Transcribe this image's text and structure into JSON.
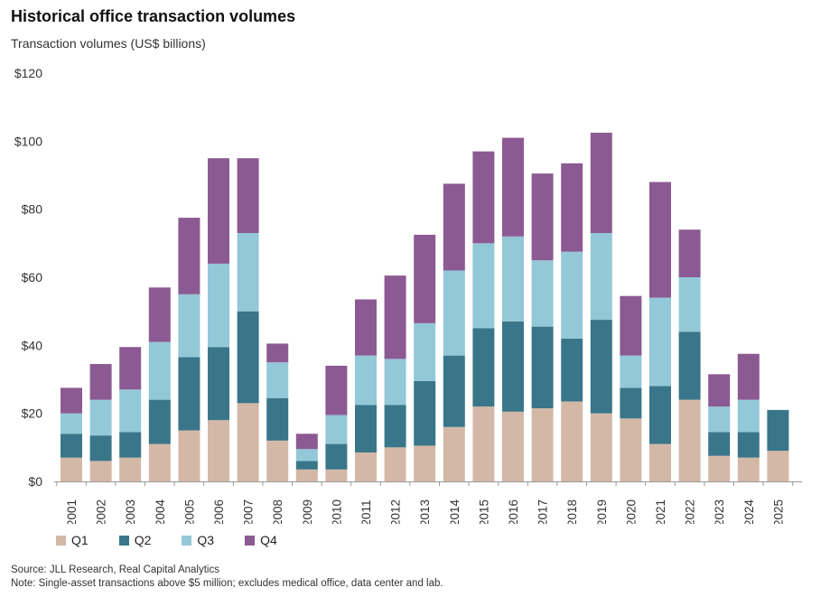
{
  "title": "Historical office transaction volumes",
  "chart_data": {
    "type": "bar",
    "stacked": true,
    "title": "Historical office transaction volumes",
    "ylabel": "Transaction volumes (US$ billions)",
    "xlabel": "",
    "ylim": [
      0,
      120
    ],
    "yticks": [
      0,
      20,
      40,
      60,
      80,
      100,
      120
    ],
    "ytick_labels": [
      "$0",
      "$20",
      "$40",
      "$60",
      "$80",
      "$100",
      "$120"
    ],
    "grid": false,
    "legend_position": "bottom-left",
    "categories": [
      "2001",
      "2002",
      "2003",
      "2004",
      "2005",
      "2006",
      "2007",
      "2008",
      "2009",
      "2010",
      "2011",
      "2012",
      "2013",
      "2014",
      "2015",
      "2016",
      "2017",
      "2018",
      "2019",
      "2020",
      "2021",
      "2022",
      "2023",
      "2024",
      "2025"
    ],
    "series": [
      {
        "name": "Q1",
        "color": "#d4b8a7",
        "values": [
          7,
          6,
          7,
          11,
          15,
          18,
          23,
          12,
          3.5,
          3.5,
          8.5,
          10,
          10.5,
          16,
          22,
          20.5,
          21.5,
          23.5,
          20,
          18.5,
          11,
          24,
          7.5,
          7,
          9
        ]
      },
      {
        "name": "Q2",
        "color": "#3a7689",
        "values": [
          7,
          7.5,
          7.5,
          13,
          21.5,
          21.5,
          27,
          12.5,
          2.5,
          7.5,
          14,
          12.5,
          19,
          21,
          23,
          26.5,
          24,
          18.5,
          27.5,
          9,
          17,
          20,
          7,
          7.5,
          12
        ]
      },
      {
        "name": "Q3",
        "color": "#93c8d8",
        "values": [
          6,
          10.5,
          12.5,
          17,
          18.5,
          24.5,
          23,
          10.5,
          3.5,
          8.5,
          14.5,
          13.5,
          17,
          25,
          25,
          25,
          19.5,
          25.5,
          25.5,
          9.5,
          26,
          16,
          7.5,
          9.5,
          0
        ]
      },
      {
        "name": "Q4",
        "color": "#8c5a92",
        "values": [
          7.5,
          10.5,
          12.5,
          16,
          22.5,
          31,
          22,
          5.5,
          4.5,
          14.5,
          16.5,
          24.5,
          26,
          25.5,
          27,
          29,
          25.5,
          26,
          29.5,
          17.5,
          34,
          14,
          9.5,
          13.5,
          0
        ]
      }
    ]
  },
  "legend": [
    {
      "label": "Q1",
      "color": "#d4b8a7"
    },
    {
      "label": "Q2",
      "color": "#3a7689"
    },
    {
      "label": "Q3",
      "color": "#93c8d8"
    },
    {
      "label": "Q4",
      "color": "#8c5a92"
    }
  ],
  "footer": {
    "source": "Source: JLL Research, Real Capital Analytics",
    "note": "Note: Single-asset transactions above $5 million; excludes medical office, data center and lab."
  }
}
